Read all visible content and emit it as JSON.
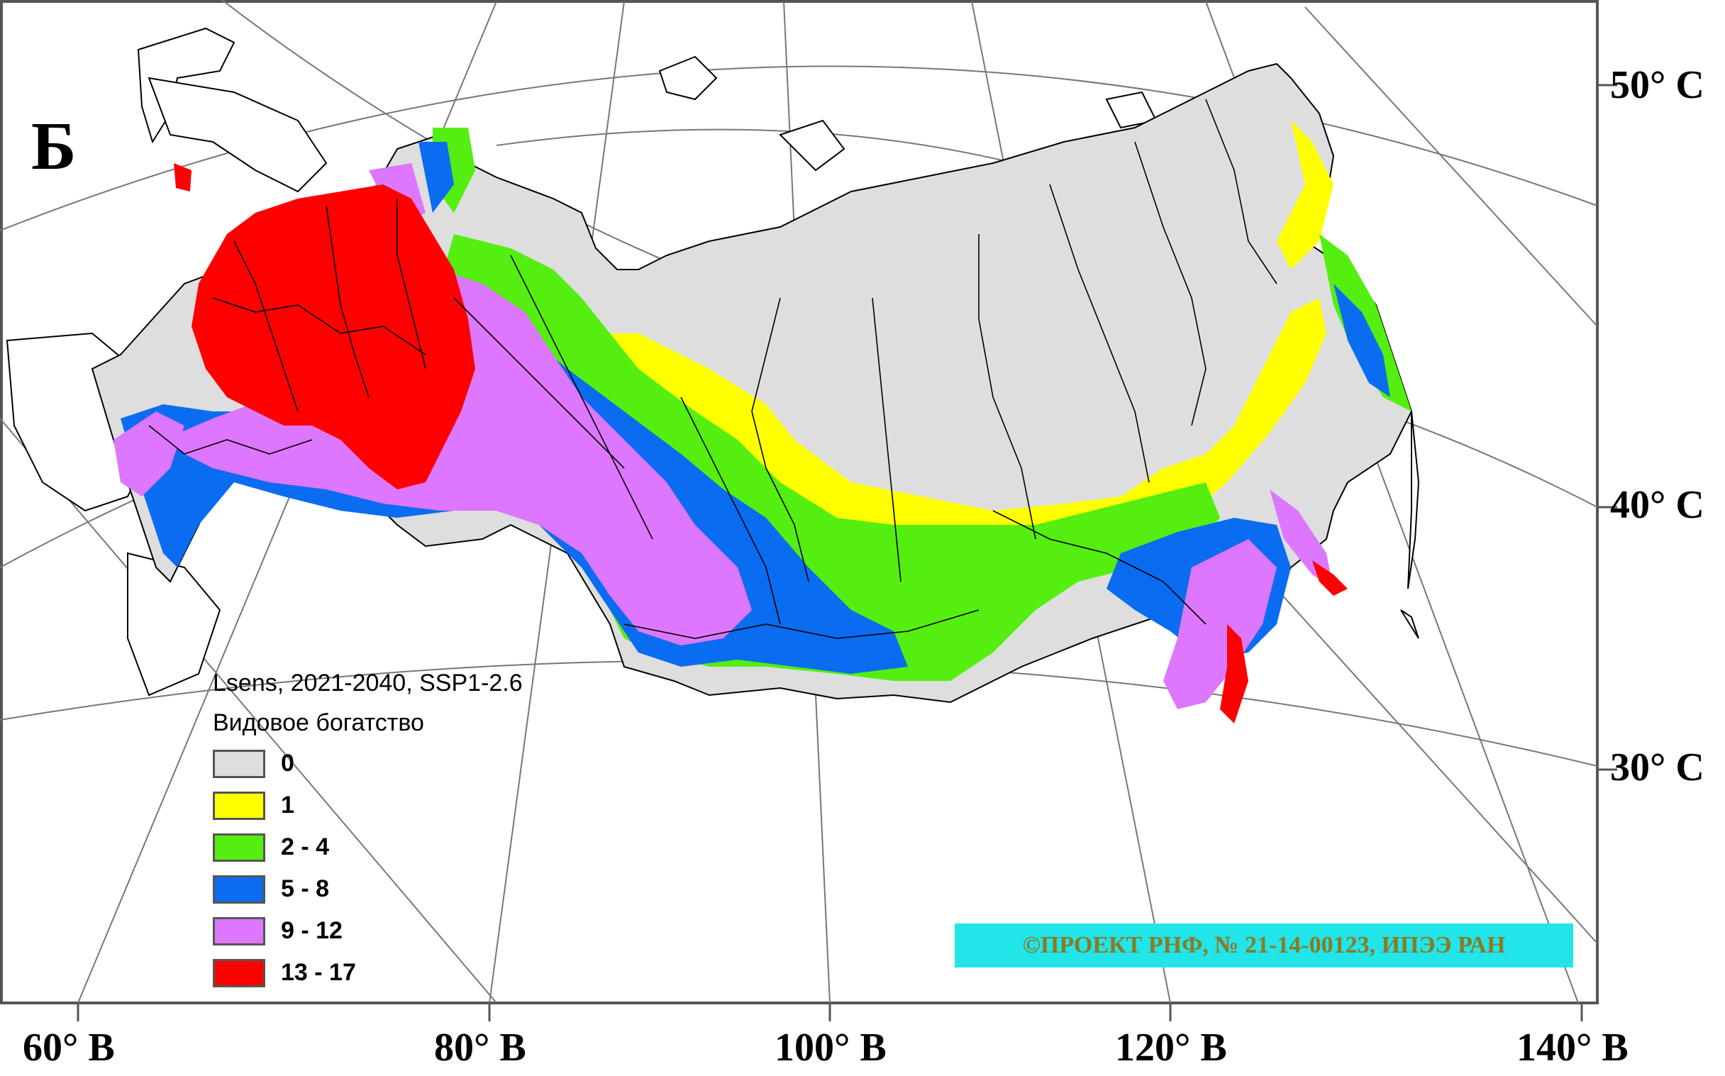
{
  "panel_letter": "Б",
  "colors": {
    "class_0": "#dedede",
    "class_1": "#ffff00",
    "class_2_4": "#55ee11",
    "class_5_8": "#0a6cf0",
    "class_9_12": "#dd77ff",
    "class_13_17": "#ff0000",
    "credit_bg": "#22e5ea",
    "credit_text": "#8b7a22"
  },
  "latitude_labels": [
    "50° С",
    "40° С",
    "30° С"
  ],
  "longitude_labels": [
    "60° В",
    "80° В",
    "100° В",
    "120° В",
    "140° В"
  ],
  "legend": {
    "line1": "Lsens, 2021-2040, SSP1-2.6",
    "line2": "Видовое богатство",
    "classes": [
      {
        "label": "0",
        "color": "#dedede"
      },
      {
        "label": "1",
        "color": "#ffff00"
      },
      {
        "label": "2 - 4",
        "color": "#55ee11"
      },
      {
        "label": "5 - 8",
        "color": "#0a6cf0"
      },
      {
        "label": "9 - 12",
        "color": "#dd77ff"
      },
      {
        "label": "13 - 17",
        "color": "#ff0000"
      }
    ]
  },
  "credit": "©ПРОЕКТ РНФ, № 21-14-00123, ИПЭЭ РАН"
}
